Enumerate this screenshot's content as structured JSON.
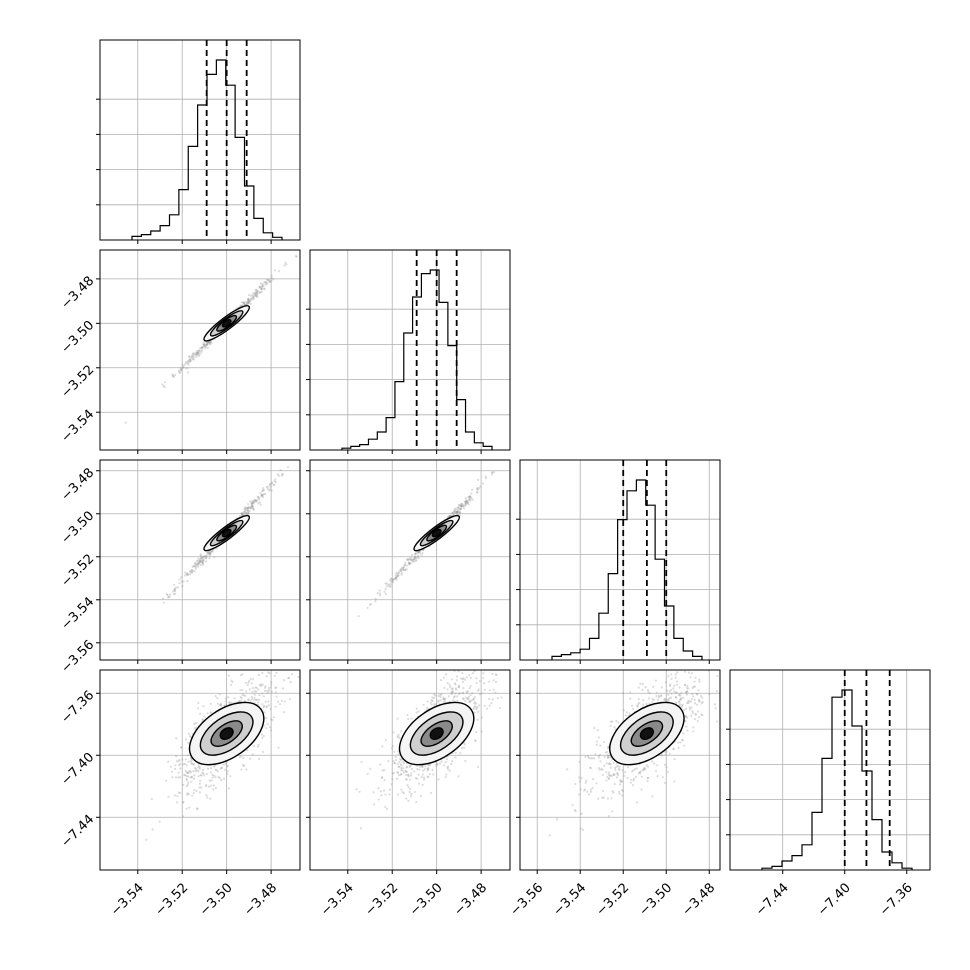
{
  "chart_data": {
    "type": "corner",
    "grid": true,
    "parameters": [
      {
        "ticks": [
          -3.54,
          -3.52,
          -3.5,
          -3.48
        ],
        "tick_labels": [
          "−3.54",
          "−3.52",
          "−3.50",
          "−3.48"
        ],
        "quantiles": [
          -3.509,
          -3.5,
          -3.491
        ]
      },
      {
        "ticks": [
          -3.54,
          -3.52,
          -3.5,
          -3.48
        ],
        "tick_labels": [
          "−3.54",
          "−3.52",
          "−3.50",
          "−3.48"
        ],
        "quantiles": [
          -3.509,
          -3.5,
          -3.491
        ]
      },
      {
        "ticks": [
          -3.56,
          -3.54,
          -3.52,
          -3.5,
          -3.48
        ],
        "tick_labels": [
          "−3.56",
          "−3.54",
          "−3.52",
          "−3.50",
          "−3.48"
        ],
        "quantiles": [
          -3.52,
          -3.509,
          -3.5
        ]
      },
      {
        "ticks": [
          -7.44,
          -7.4,
          -7.36
        ],
        "tick_labels": [
          "−7.44",
          "−7.40",
          "−7.36"
        ],
        "quantiles": [
          -7.4,
          -7.386,
          -7.371
        ]
      }
    ],
    "histograms": [
      {
        "counts": [
          0.02,
          0.03,
          0.05,
          0.08,
          0.14,
          0.28,
          0.52,
          0.75,
          0.92,
          1.0,
          0.86,
          0.57,
          0.3,
          0.12,
          0.04,
          0.015
        ]
      },
      {
        "counts": [
          0.01,
          0.02,
          0.03,
          0.06,
          0.1,
          0.18,
          0.38,
          0.65,
          0.85,
          0.98,
          1.0,
          0.82,
          0.58,
          0.28,
          0.1,
          0.04,
          0.02
        ]
      },
      {
        "counts": [
          0.02,
          0.03,
          0.04,
          0.06,
          0.12,
          0.26,
          0.48,
          0.78,
          0.94,
          1.0,
          0.86,
          0.56,
          0.3,
          0.12,
          0.05,
          0.02
        ]
      },
      {
        "counts": [
          0.01,
          0.02,
          0.05,
          0.08,
          0.14,
          0.32,
          0.62,
          0.96,
          1.0,
          0.8,
          0.55,
          0.28,
          0.1,
          0.04,
          0.01
        ]
      }
    ]
  }
}
